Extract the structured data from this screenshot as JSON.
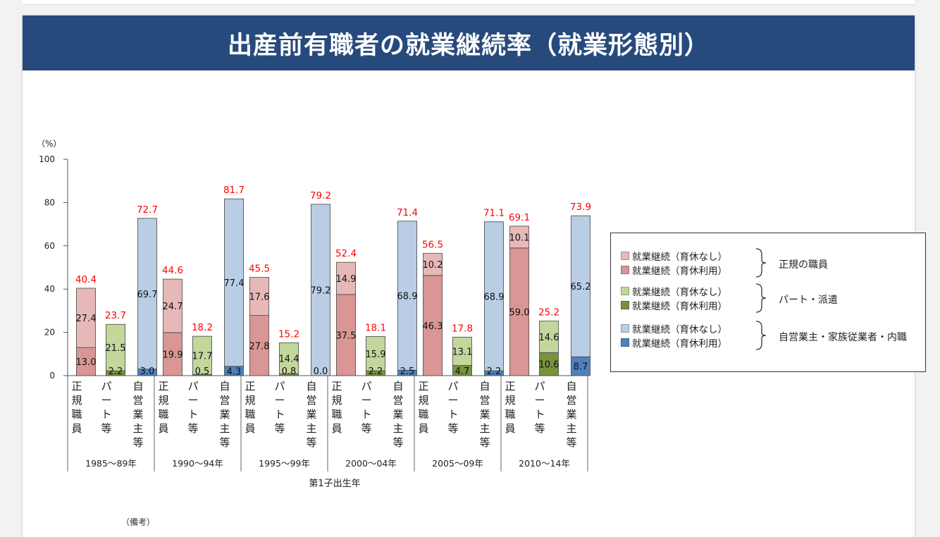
{
  "title": "出産前有職者の就業継続率（就業形態別）",
  "note": "（備考）",
  "chart_data": {
    "type": "bar",
    "stacked": true,
    "y_unit_label": "（%）",
    "ylim": [
      0,
      100
    ],
    "yticks": [
      "0",
      "20",
      "40",
      "60",
      "80",
      "100"
    ],
    "xlabel": "第1子出生年",
    "period_labels": [
      "1985〜89年",
      "1990〜94年",
      "1995〜99年",
      "2000〜04年",
      "2005〜09年",
      "2010〜14年"
    ],
    "category_labels": [
      "正規職員",
      "パート等",
      "自営業主等"
    ],
    "bars": [
      {
        "period": 0,
        "cat": 0,
        "with_leave": 13.0,
        "no_leave": 27.4,
        "total": 40.4,
        "with_label": "13.0",
        "no_label": "27.4",
        "total_label": "40.4"
      },
      {
        "period": 0,
        "cat": 1,
        "with_leave": 2.2,
        "no_leave": 21.5,
        "total": 23.7,
        "with_label": "2.2",
        "no_label": "21.5",
        "total_label": "23.7"
      },
      {
        "period": 0,
        "cat": 2,
        "with_leave": 3.0,
        "no_leave": 69.7,
        "total": 72.7,
        "with_label": "3.0",
        "no_label": "69.7",
        "total_label": "72.7"
      },
      {
        "period": 1,
        "cat": 0,
        "with_leave": 19.9,
        "no_leave": 24.7,
        "total": 44.6,
        "with_label": "19.9",
        "no_label": "24.7",
        "total_label": "44.6"
      },
      {
        "period": 1,
        "cat": 1,
        "with_leave": 0.5,
        "no_leave": 17.7,
        "total": 18.2,
        "with_label": "0.5",
        "no_label": "17.7",
        "total_label": "18.2"
      },
      {
        "period": 1,
        "cat": 2,
        "with_leave": 4.3,
        "no_leave": 77.4,
        "total": 81.7,
        "with_label": "4.3",
        "no_label": "77.4",
        "total_label": "81.7"
      },
      {
        "period": 2,
        "cat": 0,
        "with_leave": 27.8,
        "no_leave": 17.6,
        "total": 45.5,
        "with_label": "27.8",
        "no_label": "17.6",
        "total_label": "45.5"
      },
      {
        "period": 2,
        "cat": 1,
        "with_leave": 0.8,
        "no_leave": 14.4,
        "total": 15.2,
        "with_label": "0.8",
        "no_label": "14.4",
        "total_label": "15.2"
      },
      {
        "period": 2,
        "cat": 2,
        "with_leave": 0.0,
        "no_leave": 79.2,
        "total": 79.2,
        "with_label": "0.0",
        "no_label": "79.2",
        "total_label": "79.2"
      },
      {
        "period": 3,
        "cat": 0,
        "with_leave": 37.5,
        "no_leave": 14.9,
        "total": 52.4,
        "with_label": "37.5",
        "no_label": "14.9",
        "total_label": "52.4"
      },
      {
        "period": 3,
        "cat": 1,
        "with_leave": 2.2,
        "no_leave": 15.9,
        "total": 18.1,
        "with_label": "2.2",
        "no_label": "15.9",
        "total_label": "18.1"
      },
      {
        "period": 3,
        "cat": 2,
        "with_leave": 2.5,
        "no_leave": 68.9,
        "total": 71.4,
        "with_label": "2.5",
        "no_label": "68.9",
        "total_label": "71.4"
      },
      {
        "period": 4,
        "cat": 0,
        "with_leave": 46.3,
        "no_leave": 10.2,
        "total": 56.5,
        "with_label": "46.3",
        "no_label": "10.2",
        "total_label": "56.5"
      },
      {
        "period": 4,
        "cat": 1,
        "with_leave": 4.7,
        "no_leave": 13.1,
        "total": 17.8,
        "with_label": "4.7",
        "no_label": "13.1",
        "total_label": "17.8"
      },
      {
        "period": 4,
        "cat": 2,
        "with_leave": 2.2,
        "no_leave": 68.9,
        "total": 71.1,
        "with_label": "2.2",
        "no_label": "68.9",
        "total_label": "71.1"
      },
      {
        "period": 5,
        "cat": 0,
        "with_leave": 59.0,
        "no_leave": 10.1,
        "total": 69.1,
        "with_label": "59.0",
        "no_label": "10.1",
        "total_label": "69.1"
      },
      {
        "period": 5,
        "cat": 1,
        "with_leave": 10.6,
        "no_leave": 14.6,
        "total": 25.2,
        "with_label": "10.6",
        "no_label": "14.6",
        "total_label": "25.2"
      },
      {
        "period": 5,
        "cat": 2,
        "with_leave": 8.7,
        "no_leave": 65.2,
        "total": 73.9,
        "with_label": "8.7",
        "no_label": "65.2",
        "total_label": "73.9"
      }
    ],
    "colors": {
      "regular_no_leave": "#e6b9b8",
      "regular_with_leave": "#d99694",
      "part_no_leave": "#c3d69b",
      "part_with_leave": "#77933c",
      "self_no_leave": "#b9cde5",
      "self_with_leave": "#4f81bd",
      "total_label": "#ff0000"
    },
    "legend": {
      "groups": [
        {
          "name": "正規の職員",
          "items": [
            "就業継続（育休なし）",
            "就業継続（育休利用）"
          ],
          "colors": [
            "#e6b9b8",
            "#d99694"
          ]
        },
        {
          "name": "パート・派遣",
          "items": [
            "就業継続（育休なし）",
            "就業継続（育休利用）"
          ],
          "colors": [
            "#c3d69b",
            "#77933c"
          ]
        },
        {
          "name": "自営業主・家族従業者・内職",
          "items": [
            "就業継続（育休なし）",
            "就業継続（育休利用）"
          ],
          "colors": [
            "#b9cde5",
            "#4f81bd"
          ]
        }
      ]
    }
  }
}
